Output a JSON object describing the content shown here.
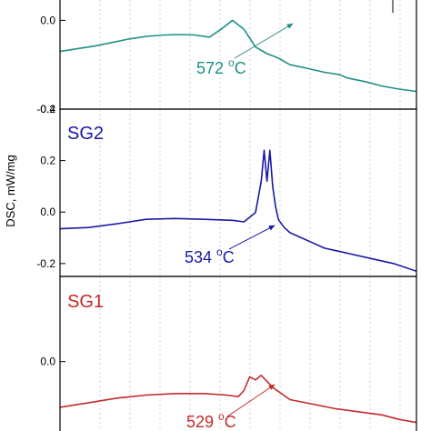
{
  "chart_data": {
    "type": "line",
    "ylabel": "DSC, mW/mg",
    "panels": [
      {
        "id": "top",
        "label": "",
        "color": "#1f8f86",
        "ylim": [
          -0.2,
          0.05
        ],
        "yticks": [
          {
            "v": 0.0,
            "t": "0.0"
          },
          {
            "v": -0.2,
            "t": "-0.2"
          }
        ],
        "annotation": {
          "value": "572",
          "unit": "C",
          "deg": "o"
        },
        "x": [
          0,
          6,
          12,
          18,
          24,
          30,
          36,
          42,
          47,
          52,
          56,
          60,
          64,
          68,
          72,
          76,
          80,
          86,
          92,
          97,
          100,
          106,
          112,
          118,
          124
        ],
        "y": [
          -0.07,
          -0.064,
          -0.058,
          -0.05,
          -0.042,
          -0.036,
          -0.033,
          -0.032,
          -0.033,
          -0.038,
          -0.02,
          0.0,
          -0.02,
          -0.06,
          -0.075,
          -0.085,
          -0.1,
          -0.108,
          -0.117,
          -0.122,
          -0.13,
          -0.138,
          -0.148,
          -0.155,
          -0.16
        ]
      },
      {
        "id": "sg2",
        "label": "SG2",
        "color": "#1a1aa6",
        "ylim": [
          -0.25,
          0.4
        ],
        "yticks": [
          {
            "v": 0.4,
            "t": "0.4"
          },
          {
            "v": 0.2,
            "t": "0.2"
          },
          {
            "v": 0.0,
            "t": "0.0"
          },
          {
            "v": -0.2,
            "t": "-0.2"
          }
        ],
        "annotation": {
          "value": "534",
          "unit": "C",
          "deg": "o"
        },
        "x": [
          0,
          10,
          20,
          30,
          40,
          50,
          60,
          64,
          68,
          70,
          71,
          72,
          73,
          74,
          75,
          76,
          78,
          80,
          84,
          88,
          92,
          96,
          100,
          108,
          116,
          124
        ],
        "y": [
          -0.065,
          -0.06,
          -0.045,
          -0.028,
          -0.025,
          -0.028,
          -0.032,
          -0.038,
          -0.002,
          0.12,
          0.24,
          0.12,
          0.24,
          0.1,
          0.02,
          -0.03,
          -0.06,
          -0.08,
          -0.1,
          -0.12,
          -0.14,
          -0.15,
          -0.16,
          -0.18,
          -0.2,
          -0.23
        ]
      },
      {
        "id": "sg1",
        "label": "SG1",
        "color": "#c32a2a",
        "ylim": [
          -0.24,
          0.28
        ],
        "yticks": [
          {
            "v": 0.0,
            "t": "0.0"
          }
        ],
        "annotation": {
          "value": "529",
          "unit": "C",
          "deg": "o"
        },
        "x": [
          0,
          10,
          20,
          30,
          40,
          50,
          58,
          62,
          64,
          66,
          68,
          70,
          74,
          80,
          88,
          96,
          104,
          112,
          118,
          124
        ],
        "y": [
          -0.15,
          -0.135,
          -0.12,
          -0.11,
          -0.105,
          -0.105,
          -0.11,
          -0.115,
          -0.095,
          -0.05,
          -0.06,
          -0.045,
          -0.085,
          -0.125,
          -0.14,
          -0.155,
          -0.165,
          -0.175,
          -0.19,
          -0.2
        ]
      }
    ]
  }
}
